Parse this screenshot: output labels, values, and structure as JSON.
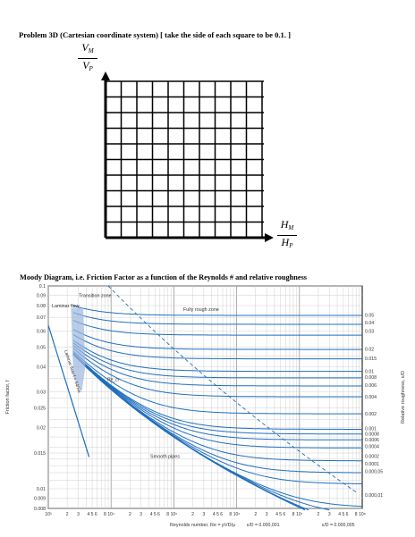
{
  "problem": {
    "title": "Problem 3D (Cartesian coordinate system) [ take the side of each square to be 0.1. ]",
    "y_axis": {
      "numerator": "V",
      "numerator_sub": "M",
      "denominator": "V",
      "denominator_sub": "P"
    },
    "x_axis": {
      "numerator": "H",
      "numerator_sub": "M",
      "denominator": "H",
      "denominator_sub": "P"
    },
    "grid_cols": 10,
    "grid_rows": 10
  },
  "moody": {
    "title": "Moody Diagram, i.e. Friction Factor as a function of the Reynolds # and relative roughness",
    "y_axis_label": "Friction factor, f",
    "right_axis_label": "Relative roughness, ε/D",
    "x_axis_label": "Reynolds number, Re = ρVD/μ",
    "left_ticks": [
      "0.1",
      "0.09",
      "0.08",
      "0.07",
      "0.06",
      "0.05",
      "0.04",
      "0.03",
      "0.025",
      "0.02",
      "0.015",
      "0.01",
      "0.009",
      "0.008"
    ],
    "right_ticks": [
      "0.05",
      "0.04",
      "0.03",
      "0.02",
      "0.015",
      "0.01",
      "0.008",
      "0.006",
      "0.004",
      "0.002",
      "0.001",
      "0.0008",
      "0.0006",
      "0.0004",
      "0.0002",
      "0.0001",
      "0.000,05",
      "0.000,01"
    ],
    "bottom_ticks": [
      "10³",
      "2",
      "3",
      "4 5 6",
      "8",
      "10⁴",
      "2",
      "3",
      "4 5 6",
      "8",
      "10⁵",
      "2",
      "3",
      "4 5 6",
      "8",
      "10⁶",
      "2",
      "3",
      "4 5 6",
      "8",
      "10⁷",
      "2",
      "3",
      "4 5 6",
      "8",
      "10⁸"
    ],
    "annotations": {
      "laminar": "Laminar flow",
      "transition": "Transition zone",
      "fully_rough": "Fully rough zone",
      "smooth": "Smooth pipes",
      "laminar_formula": "Laminar flow f = 64/Re",
      "re_cr": "Re_cr",
      "eps_min1": "ε/D = 0.000,001",
      "eps_min2": "ε/D = 0.000,005"
    }
  },
  "chart_data": {
    "type": "line",
    "title": "Moody Diagram, i.e. Friction Factor as a function of the Reynolds # and relative roughness",
    "xlabel": "Reynolds number, Re = ρVD/μ",
    "ylabel": "Friction factor, f",
    "x_scale": "log",
    "y_scale": "log",
    "xlim": [
      1000,
      100000000
    ],
    "ylim": [
      0.008,
      0.1
    ],
    "grid": true,
    "series_relative_roughness": [
      0.05,
      0.04,
      0.03,
      0.02,
      0.015,
      0.01,
      0.008,
      0.006,
      0.004,
      0.002,
      0.001,
      0.0008,
      0.0006,
      0.0004,
      0.0002,
      0.0001,
      5e-05,
      1e-05,
      5e-06,
      1e-06,
      0
    ]
  }
}
